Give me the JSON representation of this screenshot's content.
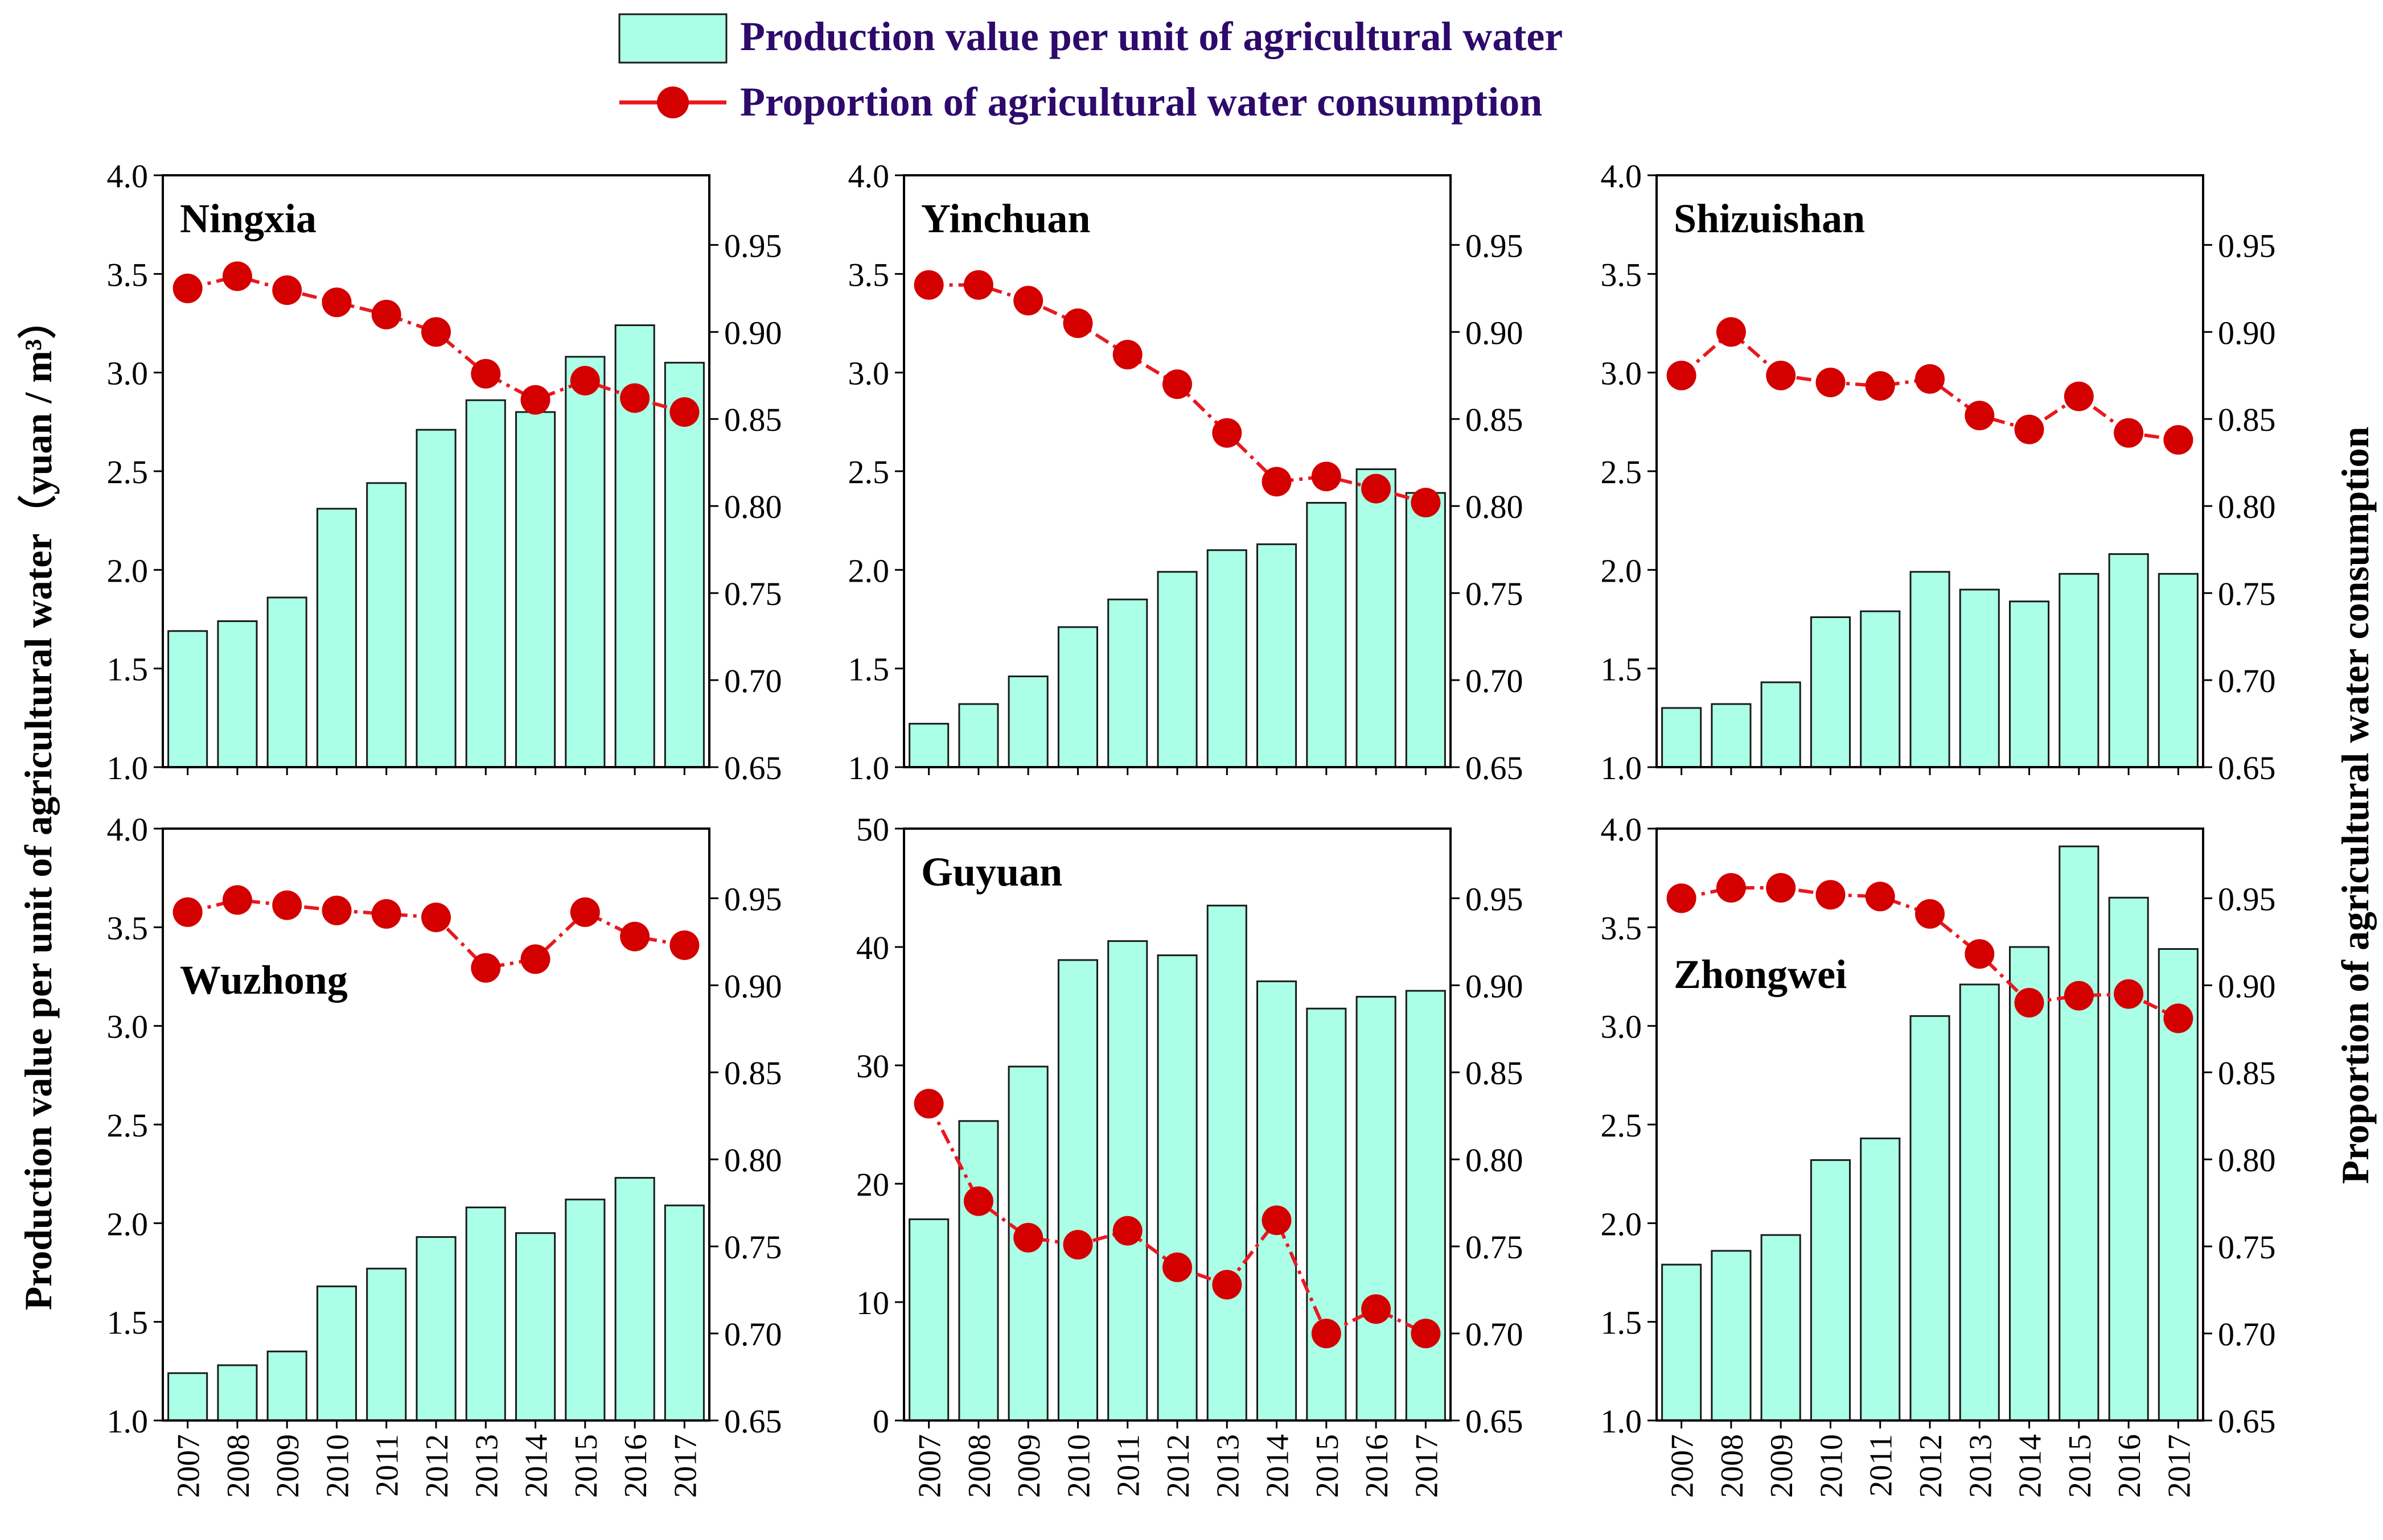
{
  "colors": {
    "bar_fill": "#aaffe6",
    "bar_stroke": "#1a1a1a",
    "line": "#e8191f",
    "marker": "#d40000",
    "legend_text": "#2d0a6b"
  },
  "legend": {
    "bar_label": "Production value per unit of agricultural water",
    "line_label": "Proportion of agricultural water consumption"
  },
  "y_left_label": "Production value per unit of agricultural water（yuan / m³）",
  "y_right_label": "Proportion of agricultural water consumption",
  "chart_data": [
    {
      "type": "bar+line",
      "title": "Ningxia",
      "categories": [
        "2007",
        "2008",
        "2009",
        "2010",
        "2011",
        "2012",
        "2013",
        "2014",
        "2015",
        "2016",
        "2017"
      ],
      "bar_values": [
        1.69,
        1.74,
        1.86,
        2.31,
        2.44,
        2.71,
        2.86,
        2.8,
        3.08,
        3.24,
        3.05
      ],
      "line_values": [
        0.925,
        0.932,
        0.924,
        0.917,
        0.91,
        0.9,
        0.876,
        0.861,
        0.872,
        0.862,
        0.854
      ],
      "ylim_left": [
        1.0,
        4.0
      ],
      "yticks_left": [
        "1.0",
        "1.5",
        "2.0",
        "2.5",
        "3.0",
        "3.5",
        "4.0"
      ],
      "ylim_right": [
        0.65,
        0.99
      ],
      "yticks_right": [
        "0.65",
        "0.70",
        "0.75",
        "0.80",
        "0.85",
        "0.90",
        "0.95"
      ]
    },
    {
      "type": "bar+line",
      "title": "Yinchuan",
      "categories": [
        "2007",
        "2008",
        "2009",
        "2010",
        "2011",
        "2012",
        "2013",
        "2014",
        "2015",
        "2016",
        "2017"
      ],
      "bar_values": [
        1.22,
        1.32,
        1.46,
        1.71,
        1.85,
        1.99,
        2.1,
        2.13,
        2.34,
        2.51,
        2.39
      ],
      "line_values": [
        0.927,
        0.927,
        0.918,
        0.905,
        0.887,
        0.87,
        0.842,
        0.814,
        0.817,
        0.81,
        0.802
      ],
      "ylim_left": [
        1.0,
        4.0
      ],
      "yticks_left": [
        "1.0",
        "1.5",
        "2.0",
        "2.5",
        "3.0",
        "3.5",
        "4.0"
      ],
      "ylim_right": [
        0.65,
        0.99
      ],
      "yticks_right": [
        "0.65",
        "0.70",
        "0.75",
        "0.80",
        "0.85",
        "0.90",
        "0.95"
      ]
    },
    {
      "type": "bar+line",
      "title": "Shizuishan",
      "categories": [
        "2007",
        "2008",
        "2009",
        "2010",
        "2011",
        "2012",
        "2013",
        "2014",
        "2015",
        "2016",
        "2017"
      ],
      "bar_values": [
        1.3,
        1.32,
        1.43,
        1.76,
        1.79,
        1.99,
        1.9,
        1.84,
        1.98,
        2.08,
        1.98
      ],
      "line_values": [
        0.875,
        0.9,
        0.875,
        0.871,
        0.869,
        0.873,
        0.852,
        0.844,
        0.863,
        0.842,
        0.838
      ],
      "ylim_left": [
        1.0,
        4.0
      ],
      "yticks_left": [
        "1.0",
        "1.5",
        "2.0",
        "2.5",
        "3.0",
        "3.5",
        "4.0"
      ],
      "ylim_right": [
        0.65,
        0.99
      ],
      "yticks_right": [
        "0.65",
        "0.70",
        "0.75",
        "0.80",
        "0.85",
        "0.90",
        "0.95"
      ]
    },
    {
      "type": "bar+line",
      "title": "Wuzhong",
      "categories": [
        "2007",
        "2008",
        "2009",
        "2010",
        "2011",
        "2012",
        "2013",
        "2014",
        "2015",
        "2016",
        "2017"
      ],
      "bar_values": [
        1.24,
        1.28,
        1.35,
        1.68,
        1.77,
        1.93,
        2.08,
        1.95,
        2.12,
        2.23,
        2.09
      ],
      "line_values": [
        0.942,
        0.949,
        0.946,
        0.943,
        0.941,
        0.939,
        0.91,
        0.915,
        0.942,
        0.928,
        0.923
      ],
      "ylim_left": [
        1.0,
        4.0
      ],
      "yticks_left": [
        "1.0",
        "1.5",
        "2.0",
        "2.5",
        "3.0",
        "3.5",
        "4.0"
      ],
      "ylim_right": [
        0.65,
        0.99
      ],
      "yticks_right": [
        "0.65",
        "0.70",
        "0.75",
        "0.80",
        "0.85",
        "0.90",
        "0.95"
      ]
    },
    {
      "type": "bar+line",
      "title": "Guyuan",
      "categories": [
        "2007",
        "2008",
        "2009",
        "2010",
        "2011",
        "2012",
        "2013",
        "2014",
        "2015",
        "2016",
        "2017"
      ],
      "bar_values": [
        17.0,
        25.3,
        29.9,
        38.9,
        40.5,
        39.3,
        43.5,
        37.1,
        34.8,
        35.8,
        36.3
      ],
      "line_values": [
        0.832,
        0.776,
        0.755,
        0.751,
        0.759,
        0.738,
        0.728,
        0.765,
        0.7,
        0.714,
        0.7
      ],
      "ylim_left": [
        0,
        50
      ],
      "yticks_left": [
        "0",
        "10",
        "20",
        "30",
        "40",
        "50"
      ],
      "ylim_right": [
        0.65,
        0.99
      ],
      "yticks_right": [
        "0.65",
        "0.70",
        "0.75",
        "0.80",
        "0.85",
        "0.90",
        "0.95"
      ]
    },
    {
      "type": "bar+line",
      "title": "Zhongwei",
      "categories": [
        "2007",
        "2008",
        "2009",
        "2010",
        "2011",
        "2012",
        "2013",
        "2014",
        "2015",
        "2016",
        "2017"
      ],
      "bar_values": [
        1.79,
        1.86,
        1.94,
        2.32,
        2.43,
        3.05,
        3.21,
        3.4,
        3.91,
        3.65,
        3.39
      ],
      "line_values": [
        0.95,
        0.956,
        0.956,
        0.952,
        0.951,
        0.941,
        0.918,
        0.89,
        0.894,
        0.895,
        0.881
      ],
      "ylim_left": [
        1.0,
        4.0
      ],
      "yticks_left": [
        "1.0",
        "1.5",
        "2.0",
        "2.5",
        "3.0",
        "3.5",
        "4.0"
      ],
      "ylim_right": [
        0.65,
        0.99
      ],
      "yticks_right": [
        "0.65",
        "0.70",
        "0.75",
        "0.80",
        "0.85",
        "0.90",
        "0.95"
      ]
    }
  ]
}
